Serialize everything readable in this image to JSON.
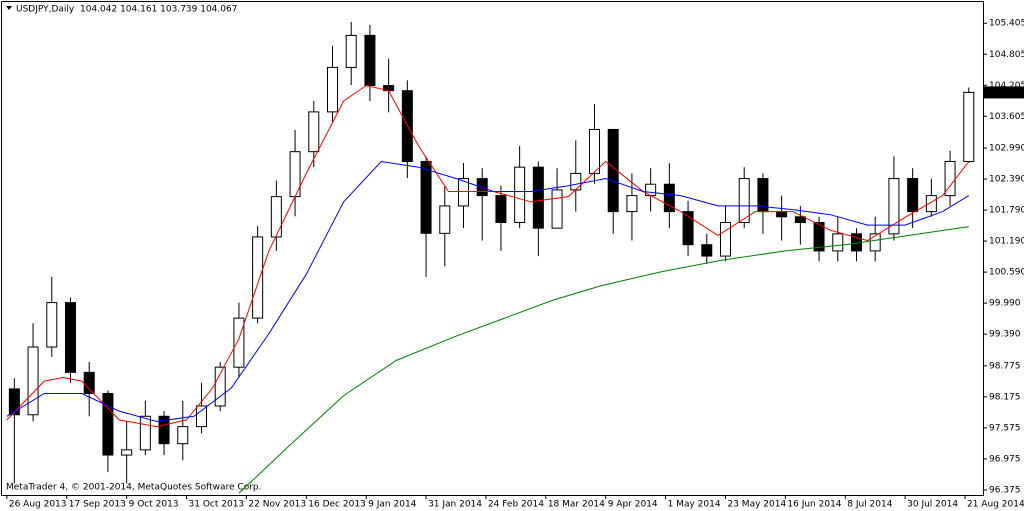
{
  "chart_data": {
    "type": "candlestick",
    "title": "USDJPY,Daily",
    "subtitle": "104.042 104.161 103.739 104.067",
    "footer": "MetaTrader 4, © 2001-2014, MetaQuotes Software Corp.",
    "current_price": 104.067,
    "xlim": [
      -1.3,
      260.8
    ],
    "ylim": [
      96.277,
      105.816
    ],
    "xticks": [
      {
        "value": 0,
        "label": "26 Aug 2013"
      },
      {
        "value": 16,
        "label": "17 Sep 2013"
      },
      {
        "value": 32,
        "label": "9 Oct 2013"
      },
      {
        "value": 48,
        "label": "31 Oct 2013"
      },
      {
        "value": 64,
        "label": "22 Nov 2013"
      },
      {
        "value": 80,
        "label": "16 Dec 2013"
      },
      {
        "value": 96,
        "label": "9 Jan 2014"
      },
      {
        "value": 112,
        "label": "31 Jan 2014"
      },
      {
        "value": 128,
        "label": "24 Feb 2014"
      },
      {
        "value": 144,
        "label": "18 Mar 2014"
      },
      {
        "value": 160,
        "label": "9 Apr 2014"
      },
      {
        "value": 176,
        "label": "1 May 2014"
      },
      {
        "value": 192,
        "label": "23 May 2014"
      },
      {
        "value": 208,
        "label": "16 Jun 2014"
      },
      {
        "value": 224,
        "label": "8 Jul 2014"
      },
      {
        "value": 240,
        "label": "30 Jul 2014"
      },
      {
        "value": 256,
        "label": "21 Aug 2014"
      }
    ],
    "yticks": [
      105.405,
      104.805,
      104.205,
      103.605,
      {
        "value": 102.99,
        "label": "102.990"
      },
      {
        "value": 102.39,
        "label": "102.390"
      },
      {
        "value": 101.79,
        "label": "101.790"
      },
      {
        "value": 101.19,
        "label": "101.190"
      },
      {
        "value": 100.59,
        "label": "100.590"
      },
      {
        "value": 99.99,
        "label": "99.990"
      },
      {
        "value": 99.39,
        "label": "99.390"
      },
      98.775,
      98.175,
      97.575,
      96.975,
      96.375
    ],
    "up_color": "#ffffff",
    "down_color": "#000000",
    "edge_color": "#000000",
    "candles": {
      "x": [
        2,
        7,
        12,
        17,
        22,
        27,
        32,
        37,
        42,
        47,
        52,
        57,
        62,
        67,
        72,
        77,
        82,
        87,
        92,
        97,
        102,
        107,
        112,
        117,
        122,
        127,
        132,
        137,
        142,
        147,
        152,
        157,
        162,
        167,
        172,
        177,
        182,
        187,
        192,
        197,
        202,
        207,
        212,
        217,
        222,
        227,
        232,
        237,
        242,
        247,
        252,
        257
      ],
      "open": [
        98.33,
        97.83,
        99.14,
        100.0,
        98.65,
        98.24,
        97.05,
        97.15,
        97.8,
        97.27,
        97.6,
        98.0,
        98.75,
        99.7,
        101.27,
        102.05,
        102.92,
        103.69,
        104.55,
        105.17,
        104.2,
        104.1,
        102.73,
        101.34,
        101.87,
        102.4,
        102.07,
        101.55,
        102.62,
        101.44,
        102.18,
        102.5,
        103.35,
        101.76,
        102.07,
        102.29,
        101.76,
        101.12,
        100.9,
        101.55,
        102.4,
        101.76,
        101.66,
        101.55,
        101.0,
        101.33,
        101.0,
        101.33,
        102.4,
        101.76,
        102.07,
        102.73
      ],
      "high": [
        98.54,
        99.6,
        100.5,
        100.1,
        98.85,
        98.3,
        97.7,
        98.1,
        97.9,
        98.1,
        98.45,
        98.85,
        100.0,
        101.48,
        102.36,
        103.34,
        103.9,
        104.97,
        105.43,
        105.37,
        104.72,
        104.3,
        102.83,
        102.26,
        102.7,
        102.6,
        102.26,
        103.03,
        102.73,
        102.6,
        103.14,
        103.84,
        103.35,
        102.5,
        102.6,
        102.7,
        101.97,
        101.33,
        101.87,
        102.62,
        102.5,
        102.07,
        101.87,
        101.66,
        101.66,
        101.44,
        101.66,
        102.83,
        102.6,
        102.4,
        102.94,
        104.161
      ],
      "low": [
        96.5,
        97.7,
        98.95,
        98.45,
        97.8,
        96.72,
        96.5,
        97.05,
        97.05,
        96.95,
        97.47,
        97.9,
        98.55,
        99.6,
        101.0,
        101.67,
        102.62,
        103.5,
        104.21,
        103.9,
        103.68,
        102.41,
        100.5,
        100.7,
        101.44,
        101.2,
        101.0,
        101.44,
        100.9,
        101.55,
        101.76,
        102.3,
        101.33,
        101.2,
        101.76,
        101.44,
        100.9,
        100.75,
        100.8,
        101.44,
        101.33,
        101.2,
        101.12,
        100.8,
        100.8,
        100.8,
        100.8,
        101.2,
        101.44,
        101.66,
        101.87,
        102.7
      ],
      "close": [
        97.83,
        99.14,
        100.0,
        98.65,
        98.24,
        97.05,
        97.15,
        97.8,
        97.27,
        97.6,
        98.0,
        98.75,
        99.7,
        101.27,
        102.05,
        102.92,
        103.69,
        104.55,
        105.17,
        104.2,
        104.1,
        102.73,
        101.34,
        101.87,
        102.4,
        102.07,
        101.55,
        102.62,
        101.44,
        102.18,
        102.5,
        103.35,
        101.76,
        102.07,
        102.29,
        101.76,
        101.12,
        100.9,
        101.55,
        102.4,
        101.76,
        101.66,
        101.55,
        101.0,
        101.33,
        101.0,
        101.33,
        102.4,
        101.76,
        102.07,
        102.73,
        104.067
      ]
    },
    "series": [
      {
        "color": "#ff0000",
        "x": [
          0,
          10,
          15,
          20,
          30,
          40,
          48,
          55,
          62,
          70,
          80,
          90,
          96,
          102,
          110,
          118,
          130,
          140,
          150,
          160,
          170,
          180,
          190,
          200,
          210,
          220,
          230,
          240,
          250,
          257
        ],
        "values": [
          97.73,
          98.48,
          98.55,
          98.48,
          97.73,
          97.6,
          97.73,
          98.35,
          99.3,
          101.0,
          102.5,
          103.9,
          104.2,
          104.1,
          103.03,
          102.15,
          102.15,
          101.95,
          102.05,
          102.73,
          102.15,
          101.76,
          101.3,
          101.76,
          101.76,
          101.4,
          101.2,
          101.65,
          102.07,
          102.73
        ]
      },
      {
        "color": "#0000ff",
        "x": [
          0,
          10,
          20,
          30,
          40,
          50,
          60,
          70,
          80,
          90,
          100,
          110,
          120,
          130,
          140,
          150,
          160,
          170,
          180,
          190,
          200,
          210,
          220,
          230,
          240,
          250,
          257
        ],
        "values": [
          97.8,
          98.24,
          98.24,
          97.9,
          97.7,
          97.8,
          98.35,
          99.4,
          100.55,
          101.95,
          102.73,
          102.62,
          102.4,
          102.15,
          102.15,
          102.26,
          102.4,
          102.15,
          102.07,
          101.87,
          101.87,
          101.8,
          101.7,
          101.5,
          101.5,
          101.76,
          102.07
        ]
      },
      {
        "color": "#008000",
        "x": [
          62,
          75,
          90,
          104,
          120,
          133,
          146,
          159,
          175,
          191,
          208,
          225,
          241,
          257
        ],
        "values": [
          96.31,
          97.2,
          98.2,
          98.88,
          99.35,
          99.7,
          100.05,
          100.33,
          100.6,
          100.82,
          101.0,
          101.13,
          101.3,
          101.47
        ]
      }
    ]
  }
}
